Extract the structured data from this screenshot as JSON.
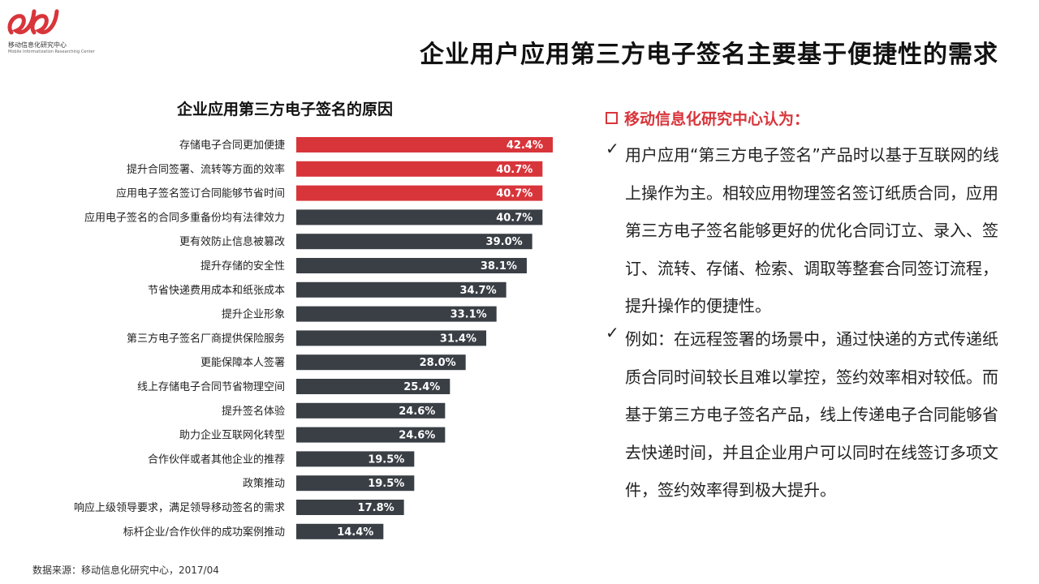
{
  "logo": {
    "org_cn": "移动信息化研究中心",
    "org_en": "Mobile Informatization Researching Center"
  },
  "title": "企业用户应用第三方电子签名主要基于便捷性的需求",
  "chart_data": {
    "type": "bar",
    "orientation": "horizontal",
    "title": "企业应用第三方电子签名的原因",
    "categories": [
      "存储电子合同更加便捷",
      "提升合同签署、流转等方面的效率",
      "应用电子签名签订合同能够节省时间",
      "应用电子签名的合同多重备份均有法律效力",
      "更有效防止信息被篡改",
      "提升存储的安全性",
      "节省快递费用成本和纸张成本",
      "提升企业形象",
      "第三方电子签名厂商提供保险服务",
      "更能保障本人签署",
      "线上存储电子合同节省物理空间",
      "提升签名体验",
      "助力企业互联网化转型",
      "合作伙伴或者其他企业的推荐",
      "政策推动",
      "响应上级领导要求，满足领导移动签名的需求",
      "标杆企业/合作伙伴的成功案例推动"
    ],
    "values": [
      42.4,
      40.7,
      40.7,
      40.7,
      39.0,
      38.1,
      34.7,
      33.1,
      31.4,
      28.0,
      25.4,
      24.6,
      24.6,
      19.5,
      19.5,
      17.8,
      14.4
    ],
    "value_labels": [
      "42.4%",
      "40.7%",
      "40.7%",
      "40.7%",
      "39.0%",
      "38.1%",
      "34.7%",
      "33.1%",
      "31.4%",
      "28.0%",
      "25.4%",
      "24.6%",
      "24.6%",
      "19.5%",
      "19.5%",
      "17.8%",
      "14.4%"
    ],
    "highlighted_count": 3,
    "colors": {
      "highlight": "#d8353b",
      "default": "#3a3f46",
      "label": "#ffffff"
    },
    "xlim": [
      0,
      42.4
    ],
    "grid": false,
    "legend": "none"
  },
  "source": "数据来源：移动信息化研究中心，2017/04",
  "analysis": {
    "heading": "移动信息化研究中心认为：",
    "points": [
      {
        "mark": "✓",
        "text": "用户应用“第三方电子签名”产品时以基于互联网的线上操作为主。相较应用物理签名签订纸质合同，应用第三方电子签名能够更好的优化合同订立、录入、签订、流转、存储、检索、调取等整套合同签订流程，提升操作的便捷性。"
      },
      {
        "mark": "✓",
        "text": "例如：在远程签署的场景中，通过快递的方式传递纸质合同时间较长且难以掌控，签约效率相对较低。而基于第三方电子签名产品，线上传递电子合同能够省去快递时间，并且企业用户可以同时在线签订多项文件，签约效率得到极大提升。"
      }
    ]
  }
}
